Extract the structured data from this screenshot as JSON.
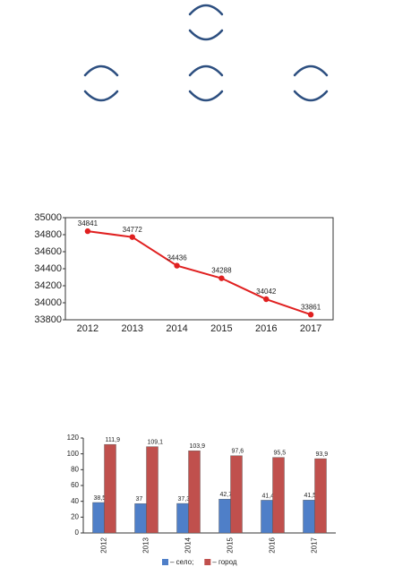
{
  "chart_data": [
    {
      "type": "line",
      "x": [
        "2012",
        "2013",
        "2014",
        "2015",
        "2016",
        "2017"
      ],
      "values": [
        34841,
        34772,
        34436,
        34288,
        34042,
        33861
      ],
      "color": "#e02020",
      "ylim": [
        33800,
        35000
      ],
      "yticks": [
        33800,
        34000,
        34200,
        34400,
        34600,
        34800,
        35000
      ]
    },
    {
      "type": "bar",
      "categories": [
        "2012",
        "2013",
        "2014",
        "2015",
        "2016",
        "2017"
      ],
      "series": [
        {
          "name": "– село;",
          "color": "#4f7fc8",
          "values": [
            38.5,
            37,
            37.3,
            42.7,
            41.4,
            41.5
          ],
          "value_labels": [
            "38,5",
            "37",
            "37,3",
            "42,7",
            "41,4",
            "41,5"
          ]
        },
        {
          "name": "– город",
          "color": "#c0504d",
          "values": [
            111.9,
            109.1,
            103.9,
            97.6,
            95.5,
            93.9
          ],
          "value_labels": [
            "111,9",
            "109,1",
            "103,9",
            "97,6",
            "95,5",
            "93,9"
          ]
        }
      ],
      "ylim": [
        0,
        120
      ],
      "yticks": [
        0,
        20,
        40,
        60,
        80,
        100,
        120
      ]
    }
  ]
}
